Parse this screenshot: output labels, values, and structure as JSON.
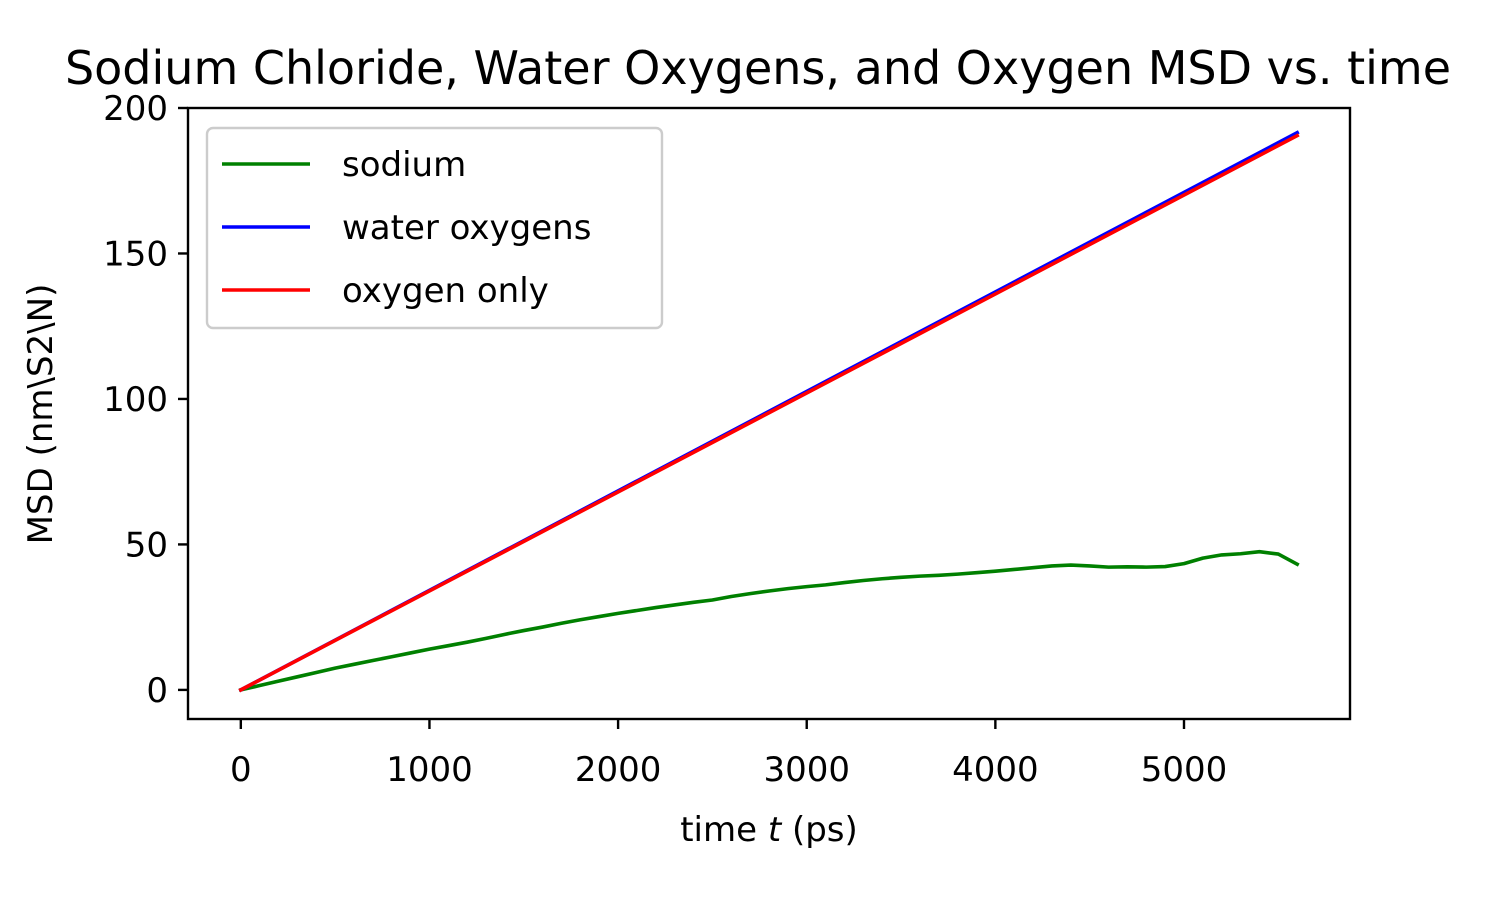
{
  "chart_data": {
    "type": "line",
    "title": "Sodium Chloride, Water Oxygens, and Oxygen MSD vs. time",
    "xlabel_prefix": "time ",
    "xlabel_var": "t",
    "xlabel_suffix": " (ps)",
    "ylabel": "MSD (nm\\S2\\N)",
    "xlim": [
      -280,
      5880
    ],
    "ylim": [
      -10,
      200
    ],
    "xticks": [
      0,
      1000,
      2000,
      3000,
      4000,
      5000
    ],
    "yticks": [
      0,
      50,
      100,
      150,
      200
    ],
    "grid": false,
    "legend_position": "top-left",
    "series": [
      {
        "name": "sodium",
        "color": "#008000",
        "x": [
          0,
          100,
          200,
          300,
          400,
          500,
          600,
          700,
          800,
          900,
          1000,
          1100,
          1200,
          1300,
          1400,
          1500,
          1600,
          1700,
          1800,
          1900,
          2000,
          2100,
          2200,
          2300,
          2400,
          2500,
          2600,
          2700,
          2800,
          2900,
          3000,
          3100,
          3200,
          3300,
          3400,
          3500,
          3600,
          3700,
          3800,
          3900,
          4000,
          4100,
          4200,
          4300,
          4400,
          4500,
          4600,
          4700,
          4800,
          4900,
          5000,
          5100,
          5200,
          5300,
          5400,
          5500,
          5600
        ],
        "y": [
          0,
          1.5,
          3,
          4.5,
          6,
          7.5,
          8.8,
          10.1,
          11.4,
          12.7,
          14,
          15.2,
          16.4,
          17.7,
          19.1,
          20.4,
          21.6,
          22.9,
          24.1,
          25.2,
          26.3,
          27.3,
          28.3,
          29.2,
          30.1,
          30.9,
          32.1,
          33.1,
          34,
          34.8,
          35.5,
          36.1,
          36.9,
          37.6,
          38.2,
          38.7,
          39.1,
          39.4,
          39.8,
          40.3,
          40.8,
          41.4,
          42,
          42.6,
          42.9,
          42.6,
          42.2,
          42.3,
          42.2,
          42.4,
          43.4,
          45.3,
          46.4,
          46.8,
          47.5,
          46.7,
          43.2
        ]
      },
      {
        "name": "water oxygens",
        "color": "#0000ff",
        "x": [
          0,
          5600
        ],
        "y": [
          0,
          191.5
        ]
      },
      {
        "name": "oxygen only",
        "color": "#ff0000",
        "x": [
          0,
          5600
        ],
        "y": [
          0,
          190.5
        ]
      }
    ]
  }
}
